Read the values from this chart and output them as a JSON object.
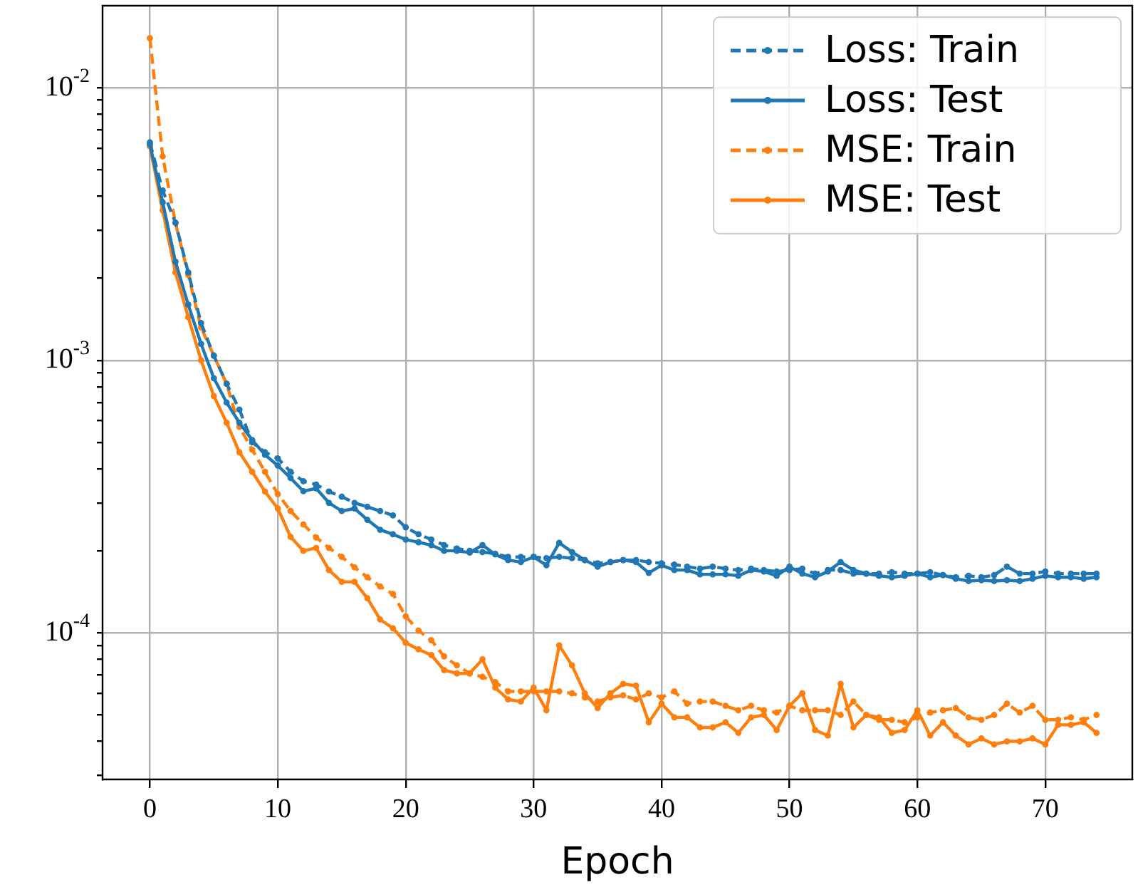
{
  "chart_data": {
    "type": "line",
    "xlabel": "Epoch",
    "log": "y",
    "grid": true,
    "legend": "top right",
    "marker": "circle",
    "x": [
      0,
      1,
      2,
      3,
      4,
      5,
      6,
      7,
      8,
      9,
      10,
      11,
      12,
      13,
      14,
      15,
      16,
      17,
      18,
      19,
      20,
      21,
      22,
      23,
      24,
      25,
      26,
      27,
      28,
      29,
      30,
      31,
      32,
      33,
      34,
      35,
      36,
      37,
      38,
      39,
      40,
      41,
      42,
      43,
      44,
      45,
      46,
      47,
      48,
      49,
      50,
      51,
      52,
      53,
      54,
      55,
      56,
      57,
      58,
      59,
      60,
      61,
      62,
      63,
      64,
      65,
      66,
      67,
      68,
      69,
      70,
      71,
      72,
      73,
      74
    ],
    "xlim": [
      -3.7,
      76.8
    ],
    "xticks": [
      0,
      10,
      20,
      30,
      40,
      50,
      60,
      70
    ],
    "ylim": [
      2.9e-05,
      0.02
    ],
    "yticks": [
      {
        "value": 3e-05,
        "label": null
      },
      {
        "value": 4e-05,
        "label": null
      },
      {
        "value": 5e-05,
        "label": null
      },
      {
        "value": 6e-05,
        "label": null
      },
      {
        "value": 7e-05,
        "label": null
      },
      {
        "value": 8e-05,
        "label": null
      },
      {
        "value": 9e-05,
        "label": null
      },
      {
        "value": 0.0001,
        "label": "10$^{-4}$"
      },
      {
        "value": 0.0002,
        "label": null
      },
      {
        "value": 0.0003,
        "label": null
      },
      {
        "value": 0.0004,
        "label": null
      },
      {
        "value": 0.0005,
        "label": null
      },
      {
        "value": 0.0006,
        "label": null
      },
      {
        "value": 0.0007,
        "label": null
      },
      {
        "value": 0.0008,
        "label": null
      },
      {
        "value": 0.0009,
        "label": null
      },
      {
        "value": 0.001,
        "label": "10$^{-3}$"
      },
      {
        "value": 0.002,
        "label": null
      },
      {
        "value": 0.003,
        "label": null
      },
      {
        "value": 0.004,
        "label": null
      },
      {
        "value": 0.005,
        "label": null
      },
      {
        "value": 0.006,
        "label": null
      },
      {
        "value": 0.007,
        "label": null
      },
      {
        "value": 0.008,
        "label": null
      },
      {
        "value": 0.009,
        "label": null
      },
      {
        "value": 0.01,
        "label": "10$^{-2}$"
      }
    ],
    "series": [
      {
        "name": "Loss: Train",
        "color": "#1f77b4",
        "line_style": "dashed",
        "values": [
          0.0063,
          0.0042,
          0.0032,
          0.0021,
          0.00137,
          0.00104,
          0.00082,
          0.00066,
          0.0005,
          0.00046,
          0.000437,
          0.00039,
          0.00036,
          0.00035,
          0.00033,
          0.000316,
          0.0003,
          0.00029,
          0.00028,
          0.00027,
          0.000244,
          0.00023,
          0.00022,
          0.00021,
          0.000204,
          0.0002,
          0.000198,
          0.000195,
          0.00019,
          0.00019,
          0.00019,
          0.000188,
          0.00019,
          0.000188,
          0.000185,
          0.00018,
          0.000182,
          0.000185,
          0.000185,
          0.000182,
          0.00018,
          0.000178,
          0.000175,
          0.000172,
          0.000175,
          0.000172,
          0.00017,
          0.000172,
          0.00017,
          0.000168,
          0.00017,
          0.000172,
          0.000165,
          0.00017,
          0.00017,
          0.000165,
          0.000165,
          0.000165,
          0.000167,
          0.000165,
          0.000165,
          0.000167,
          0.000163,
          0.00016,
          0.000162,
          0.00016,
          0.000163,
          0.000175,
          0.000165,
          0.000165,
          0.000168,
          0.000165,
          0.000165,
          0.000165,
          0.000165
        ]
      },
      {
        "name": "Loss: Test",
        "color": "#1f77b4",
        "line_style": "solid",
        "values": [
          0.0062,
          0.0038,
          0.0023,
          0.0016,
          0.00115,
          0.00086,
          0.0007,
          0.00059,
          0.00051,
          0.00045,
          0.000411,
          0.00037,
          0.000331,
          0.000339,
          0.0003,
          0.00028,
          0.000286,
          0.00026,
          0.000239,
          0.00023,
          0.00022,
          0.000215,
          0.00021,
          0.0002,
          0.0002,
          0.000197,
          0.00021,
          0.000194,
          0.000185,
          0.000182,
          0.00019,
          0.000177,
          0.000214,
          0.000198,
          0.000185,
          0.000175,
          0.000182,
          0.000185,
          0.000182,
          0.000166,
          0.000177,
          0.00017,
          0.00017,
          0.000164,
          0.000164,
          0.000164,
          0.000162,
          0.00017,
          0.000168,
          0.000162,
          0.000175,
          0.000165,
          0.00016,
          0.000168,
          0.000182,
          0.00017,
          0.000165,
          0.000162,
          0.00016,
          0.000162,
          0.000165,
          0.00016,
          0.000163,
          0.000158,
          0.000155,
          0.000156,
          0.000155,
          0.000156,
          0.000155,
          0.000158,
          0.000162,
          0.00016,
          0.00016,
          0.000158,
          0.00016
        ]
      },
      {
        "name": "MSE: Train",
        "color": "#ff7f0e",
        "line_style": "dashed",
        "values": [
          0.0152,
          0.0056,
          0.00319,
          0.00206,
          0.00132,
          0.00104,
          0.00082,
          0.00057,
          0.00047,
          0.00039,
          0.000323,
          0.00028,
          0.00025,
          0.000224,
          0.000205,
          0.00019,
          0.000174,
          0.00016,
          0.000148,
          0.000139,
          0.000115,
          0.000102,
          9.4e-05,
          8.2e-05,
          7.6e-05,
          7.1e-05,
          6.9e-05,
          6.6e-05,
          6.1e-05,
          6.1e-05,
          6.1e-05,
          6.1e-05,
          6.1e-05,
          6e-05,
          5.8e-05,
          5.6e-05,
          5.8e-05,
          5.9e-05,
          5.7e-05,
          6e-05,
          5.8e-05,
          6.1e-05,
          5.5e-05,
          5.6e-05,
          5.6e-05,
          5.4e-05,
          5.2e-05,
          5.4e-05,
          5.2e-05,
          5.1e-05,
          5.4e-05,
          5.2e-05,
          5.2e-05,
          5.2e-05,
          5e-05,
          5.6e-05,
          5e-05,
          4.8e-05,
          4.8e-05,
          4.7e-05,
          4.9e-05,
          5.1e-05,
          5.2e-05,
          5.3e-05,
          4.9e-05,
          4.8e-05,
          5e-05,
          5.5e-05,
          5.1e-05,
          5.4e-05,
          4.8e-05,
          4.8e-05,
          4.9e-05,
          4.8e-05,
          5e-05
        ]
      },
      {
        "name": "MSE: Test",
        "color": "#ff7f0e",
        "line_style": "solid",
        "values": [
          0.0061,
          0.00355,
          0.0021,
          0.00144,
          0.001,
          0.00074,
          0.00059,
          0.00046,
          0.00039,
          0.00033,
          0.000286,
          0.000225,
          0.0002,
          0.000205,
          0.00017,
          0.000154,
          0.000154,
          0.000134,
          0.000112,
          0.000104,
          9.2e-05,
          8.7e-05,
          8.3e-05,
          7.3e-05,
          7.1e-05,
          7.1e-05,
          8e-05,
          6.3e-05,
          5.7e-05,
          5.6e-05,
          6.3e-05,
          5.2e-05,
          9e-05,
          7.6e-05,
          6e-05,
          5.3e-05,
          6e-05,
          6.5e-05,
          6.4e-05,
          4.7e-05,
          5.5e-05,
          4.9e-05,
          4.9e-05,
          4.5e-05,
          4.5e-05,
          4.7e-05,
          4.3e-05,
          4.9e-05,
          5e-05,
          4.4e-05,
          5.4e-05,
          6e-05,
          4.4e-05,
          4.2e-05,
          6.5e-05,
          4.5e-05,
          5e-05,
          4.9e-05,
          4.3e-05,
          4.4e-05,
          5.2e-05,
          4.2e-05,
          4.7e-05,
          4.2e-05,
          3.9e-05,
          4.1e-05,
          3.9e-05,
          4e-05,
          4e-05,
          4.1e-05,
          3.9e-05,
          4.6e-05,
          4.6e-05,
          4.7e-05,
          4.3e-05
        ]
      }
    ]
  }
}
